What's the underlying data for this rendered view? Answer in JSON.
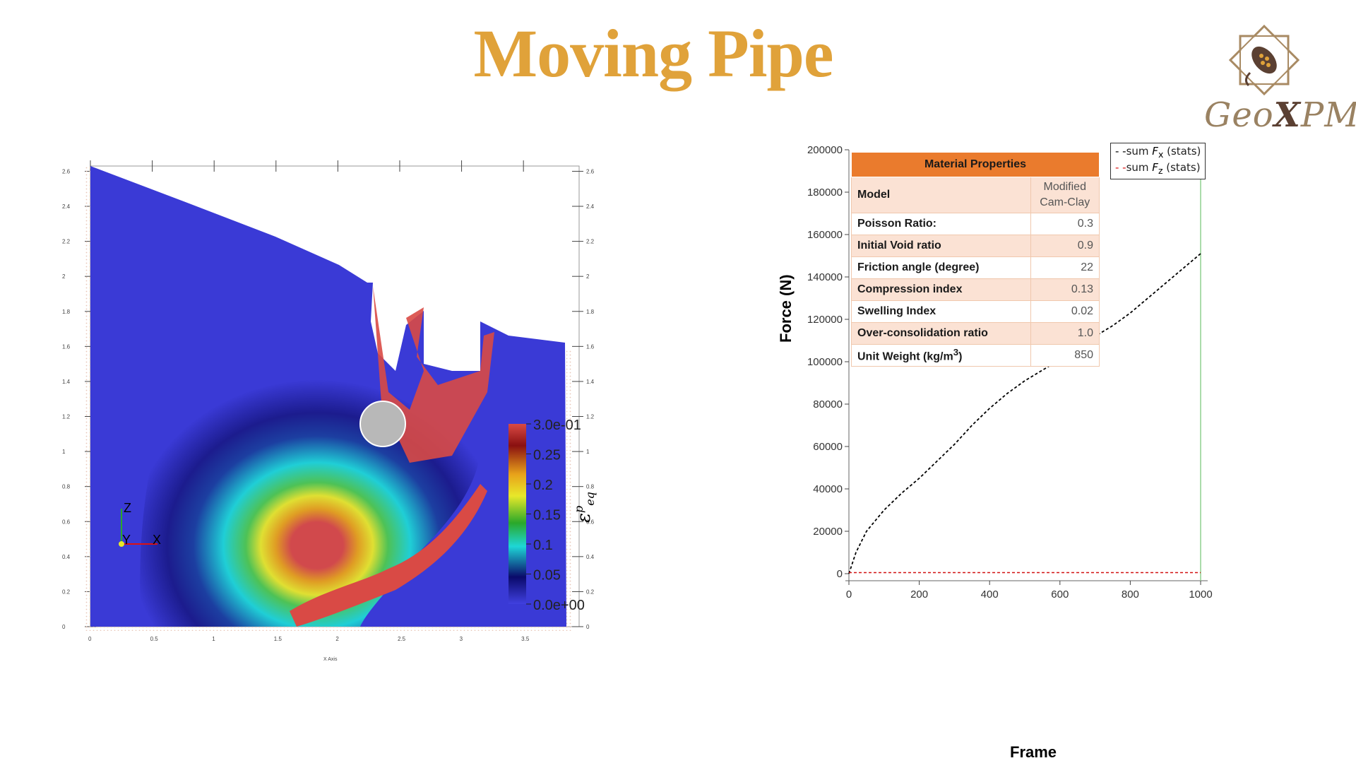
{
  "title": "Moving Pipe",
  "logo": {
    "text_prefix": "Geo",
    "text_x": "X",
    "text_suffix": "PM",
    "icon": "star-seed-logo-icon"
  },
  "simulation": {
    "x_axis_label": "X Axis",
    "x_ticks": [
      "0",
      "0.5",
      "1",
      "1.5",
      "2",
      "2.5",
      "3",
      "3.5"
    ],
    "y_ticks": [
      "0",
      "0.2",
      "0.4",
      "0.6",
      "0.8",
      "1",
      "1.2",
      "1.4",
      "1.6",
      "1.8",
      "2",
      "2.2",
      "2.4",
      "2.6"
    ],
    "colorbar_labels": [
      "3.0e-01",
      "0.25",
      "0.2",
      "0.15",
      "0.1",
      "0.05",
      "0.0e+00"
    ],
    "colorbar_title": "ε",
    "colorbar_sup": "p",
    "colorbar_sub": "eq",
    "axes_triad": {
      "z": "Z",
      "y": "Y",
      "x": "X"
    }
  },
  "chart_data": {
    "type": "line",
    "xlabel": "Frame",
    "ylabel": "Force (N)",
    "xlim": [
      0,
      1000
    ],
    "ylim": [
      0,
      200000
    ],
    "x_ticks": [
      "0",
      "200",
      "400",
      "600",
      "800",
      "1000"
    ],
    "y_ticks": [
      "0",
      "20000",
      "40000",
      "60000",
      "80000",
      "100000",
      "120000",
      "140000",
      "160000",
      "180000",
      "200000"
    ],
    "x": [
      0,
      20,
      50,
      100,
      150,
      200,
      250,
      300,
      350,
      400,
      450,
      500,
      550,
      600,
      650,
      700,
      750,
      800,
      850,
      900,
      950,
      1000
    ],
    "series": [
      {
        "name_prefix": "sum ",
        "name_var": "F",
        "name_sub": "x",
        "name_suffix": " (stats)",
        "color": "#000000",
        "values": [
          0,
          10000,
          20000,
          30000,
          38000,
          45000,
          53000,
          61000,
          70000,
          78000,
          85000,
          91000,
          96000,
          101000,
          106000,
          112000,
          117000,
          123000,
          130000,
          137000,
          144000,
          151000
        ]
      },
      {
        "name_prefix": "sum ",
        "name_var": "F",
        "name_sub": "z",
        "name_suffix": " (stats)",
        "color": "#d11111",
        "values": [
          500,
          500,
          500,
          500,
          500,
          500,
          500,
          500,
          500,
          500,
          500,
          500,
          500,
          500,
          500,
          500,
          500,
          500,
          500,
          500,
          500,
          500
        ]
      }
    ],
    "vertical_marker_x": 1000,
    "vertical_marker_color": "#8fd08f"
  },
  "material_table": {
    "header": "Material Properties",
    "rows": [
      {
        "label": "Model",
        "value_line1": "Modified",
        "value_line2": "Cam-Clay"
      },
      {
        "label": "Poisson Ratio:",
        "value": "0.3"
      },
      {
        "label": "Initial Void ratio",
        "value": "0.9"
      },
      {
        "label": "Friction angle (degree)",
        "value": "22"
      },
      {
        "label": "Compression index",
        "value": "0.13"
      },
      {
        "label": "Swelling Index",
        "value": "0.02"
      },
      {
        "label": "Over-consolidation ratio",
        "value": "1.0"
      },
      {
        "label_prefix": "Unit Weight (kg/m",
        "label_sup": "3",
        "label_suffix": ")",
        "value": "850"
      }
    ]
  }
}
